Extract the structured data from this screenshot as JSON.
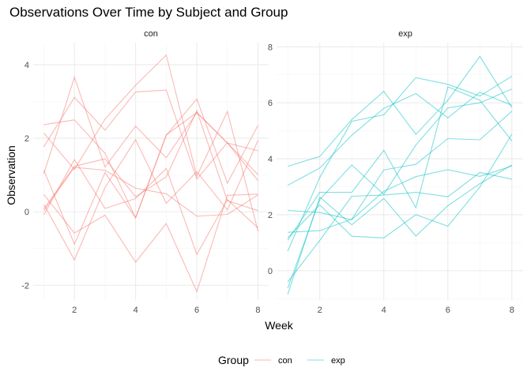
{
  "chart_data": {
    "type": "line",
    "title": "Observations Over Time by Subject and Group",
    "xlabel": "Week",
    "ylabel": "Observation",
    "legend": {
      "title": "Group",
      "position": "bottom",
      "entries": [
        {
          "label": "con",
          "color": "#F8766D"
        },
        {
          "label": "exp",
          "color": "#00BFC4"
        }
      ]
    },
    "x": [
      1,
      2,
      3,
      4,
      5,
      6,
      7,
      8
    ],
    "panels": [
      {
        "name": "con",
        "color": "#F8766D",
        "xlim": [
          0.65,
          8.35
        ],
        "ylim": [
          -2.4,
          4.6
        ],
        "xticks": [
          2,
          4,
          6,
          8
        ],
        "yticks": [
          -2,
          0,
          2,
          4
        ],
        "series": [
          {
            "values": [
              0.2,
              -1.31,
              0.66,
              1.96,
              0.23,
              1.09,
              0.05,
              1.94
            ]
          },
          {
            "values": [
              1.13,
              -0.88,
              1.07,
              -0.17,
              2.09,
              2.7,
              1.87,
              1.66
            ]
          },
          {
            "values": [
              1.77,
              3.11,
              2.22,
              3.26,
              3.31,
              0.89,
              1.88,
              1.01
            ]
          },
          {
            "values": [
              1.04,
              3.66,
              1.22,
              2.33,
              1.47,
              2.7,
              1.87,
              0.85
            ]
          },
          {
            "values": [
              0.47,
              -0.58,
              -0.09,
              -1.37,
              -0.32,
              -2.17,
              0.45,
              0.48
            ]
          },
          {
            "values": [
              2.37,
              2.5,
              1.59,
              -0.16,
              2.08,
              3.07,
              0.78,
              2.35
            ]
          },
          {
            "values": [
              0.03,
              1.21,
              1.13,
              0.64,
              0.49,
              -0.12,
              -0.07,
              0.46
            ]
          },
          {
            "values": [
              -0.08,
              1.42,
              0.09,
              0.36,
              1.18,
              -1.16,
              0.33,
              -0.44
            ]
          },
          {
            "values": [
              0.08,
              1.24,
              1.44,
              0.41,
              0.95,
              2.75,
              0.3,
              0.03
            ]
          },
          {
            "values": [
              2.14,
              1.15,
              2.52,
              3.44,
              4.26,
              0.97,
              2.73,
              -0.53
            ]
          }
        ]
      },
      {
        "name": "exp",
        "color": "#00BFC4",
        "xlim": [
          0.65,
          8.35
        ],
        "ylim": [
          -1.05,
          8.15
        ],
        "xticks": [
          2,
          4,
          6,
          8
        ],
        "yticks": [
          0,
          2,
          4,
          6,
          8
        ],
        "series": [
          {
            "values": [
              3.05,
              3.67,
              4.84,
              5.8,
              6.33,
              5.46,
              6.38,
              5.91
            ]
          },
          {
            "values": [
              -0.84,
              2.63,
              1.64,
              2.58,
              1.24,
              2.32,
              3.11,
              3.78
            ]
          },
          {
            "values": [
              2.15,
              2.08,
              1.82,
              2.84,
              3.36,
              3.61,
              3.37,
              3.74
            ]
          },
          {
            "values": [
              -0.62,
              2.54,
              3.78,
              2.73,
              4.49,
              5.82,
              6.0,
              6.49
            ]
          },
          {
            "values": [
              0.7,
              3.33,
              5.34,
              5.57,
              6.9,
              6.66,
              6.24,
              6.95
            ]
          },
          {
            "values": [
              3.73,
              4.08,
              5.4,
              6.41,
              4.87,
              6.09,
              7.66,
              5.83
            ]
          },
          {
            "values": [
              1.18,
              2.35,
              1.23,
              1.17,
              2.0,
              1.59,
              2.99,
              4.88
            ]
          },
          {
            "values": [
              1.37,
              1.43,
              1.84,
              3.6,
              3.8,
              4.72,
              4.68,
              5.7
            ]
          },
          {
            "values": [
              -0.4,
              1.08,
              2.66,
              2.7,
              2.8,
              2.64,
              3.51,
              3.27
            ]
          },
          {
            "values": [
              1.09,
              2.8,
              2.8,
              4.3,
              2.25,
              6.57,
              6.09,
              4.64
            ]
          }
        ]
      }
    ]
  }
}
